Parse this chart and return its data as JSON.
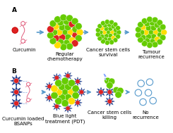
{
  "title_a": "A",
  "title_b": "B",
  "label_curcumin": "Curcumin",
  "label_bsanps": "Curcumin loaded\nBSANPs",
  "label_chemo": "Regular\nchemotherapy",
  "label_pdt": "Blue light\ntreatment (PDT)",
  "label_survival": "Cancer stem cells\nsurvival",
  "label_killing": "Cancer stem cells\nkilling",
  "label_recurrence": "Tumour\nrecurrence",
  "label_no_recurrence": "No\nrecurrence",
  "bg_color": "#ffffff",
  "green_cell": "#66cc00",
  "yellow_cell": "#ffdd00",
  "red_cell": "#dd2222",
  "blue_nanostar": "#1a3a8a",
  "curcumin_color": "#e05a7a",
  "arrow_color": "#5599cc",
  "font_size": 5.5,
  "label_font_size": 5.0
}
